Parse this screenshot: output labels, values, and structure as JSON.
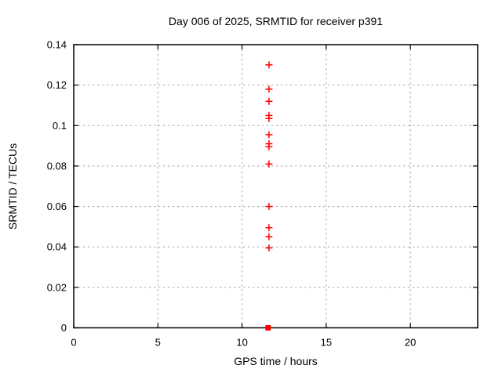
{
  "figure": {
    "background": "#ffffff",
    "border_color": "#000000",
    "grid_color": "#a9a9a9",
    "marker_color": "#ff0000"
  },
  "chart_data": {
    "type": "scatter",
    "title": "Day 006 of 2025, SRMTID for receiver p391",
    "xlabel": "GPS time / hours",
    "ylabel": "SRMTID / TECUs",
    "xlim": [
      0,
      24
    ],
    "ylim": [
      0,
      0.14
    ],
    "grid": true,
    "legend": "none",
    "xticks": {
      "values": [
        0,
        5,
        10,
        15,
        20
      ],
      "labels": [
        "0",
        "5",
        "10",
        "15",
        "20"
      ]
    },
    "yticks": {
      "values": [
        0,
        0.02,
        0.04,
        0.06,
        0.08,
        0.1,
        0.12,
        0.14
      ],
      "labels": [
        "0",
        "0.02",
        "0.04",
        "0.06",
        "0.08",
        "0.1",
        "0.12",
        "0.14"
      ]
    },
    "series": [
      {
        "name": "srmtid-points",
        "marker": "plus",
        "color": "#ff0000",
        "points": [
          [
            11.6,
            0.13
          ],
          [
            11.6,
            0.118
          ],
          [
            11.6,
            0.112
          ],
          [
            11.6,
            0.105
          ],
          [
            11.6,
            0.1035
          ],
          [
            11.6,
            0.0955
          ],
          [
            11.6,
            0.091
          ],
          [
            11.6,
            0.0895
          ],
          [
            11.6,
            0.081
          ],
          [
            11.6,
            0.06
          ],
          [
            11.6,
            0.0495
          ],
          [
            11.6,
            0.045
          ],
          [
            11.6,
            0.0395
          ]
        ]
      },
      {
        "name": "zero-value-marker",
        "marker": "filled-square",
        "color": "#ff0000",
        "points": [
          [
            11.55,
            0.0
          ]
        ]
      }
    ]
  }
}
